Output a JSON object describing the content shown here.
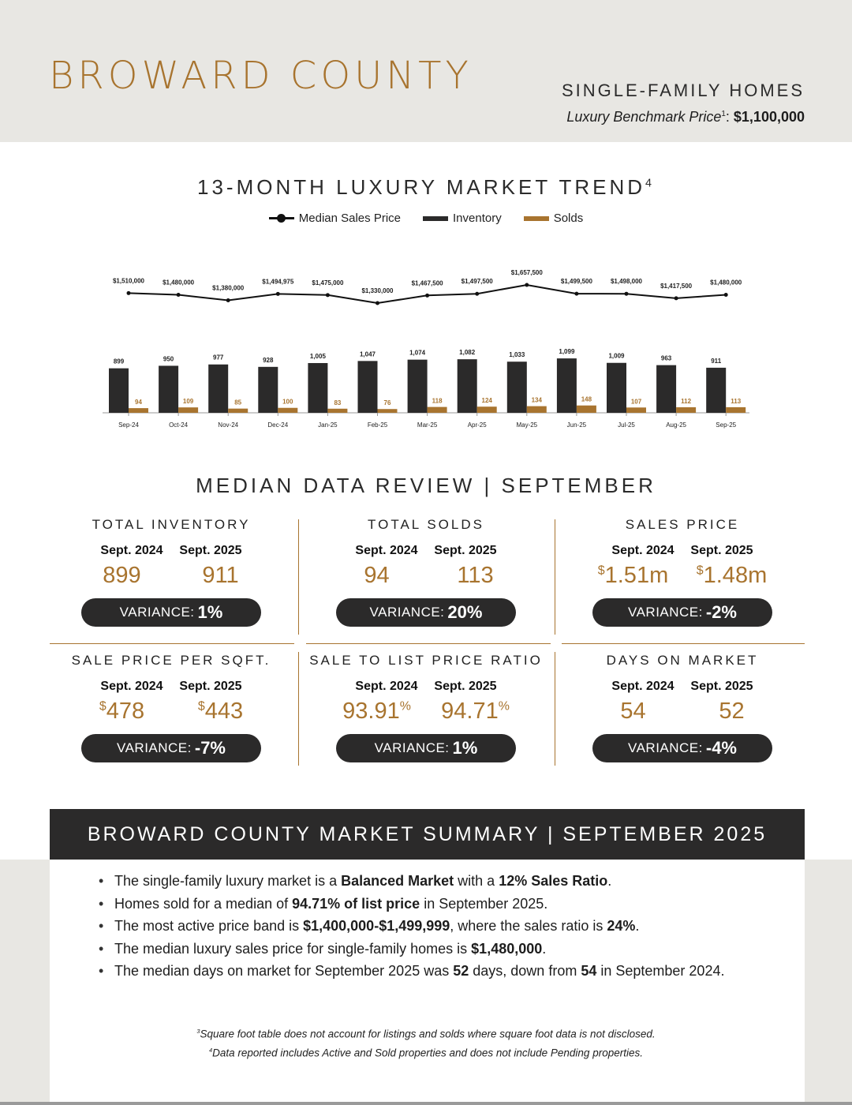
{
  "header": {
    "county": "BROWARD COUNTY",
    "property_type": "SINGLE-FAMILY HOMES",
    "benchmark_label": "Luxury Benchmark Price",
    "benchmark_sup": "1",
    "benchmark_value": "$1,100,000"
  },
  "trend": {
    "title": "13-MONTH LUXURY MARKET TREND",
    "title_sup": "4",
    "legend": {
      "median": "Median Sales Price",
      "inventory": "Inventory",
      "solds": "Solds"
    }
  },
  "colors": {
    "gold": "#a8742f",
    "dark": "#2b2a2a",
    "band": "#e8e7e3"
  },
  "chart_data": {
    "type": "bar",
    "categories": [
      "Sep-24",
      "Oct-24",
      "Nov-24",
      "Dec-24",
      "Jan-25",
      "Feb-25",
      "Mar-25",
      "Apr-25",
      "May-25",
      "Jun-25",
      "Jul-25",
      "Aug-25",
      "Sep-25"
    ],
    "series": [
      {
        "name": "Inventory",
        "values": [
          899,
          950,
          977,
          928,
          1005,
          1047,
          1074,
          1082,
          1033,
          1099,
          1009,
          963,
          911
        ]
      },
      {
        "name": "Solds",
        "values": [
          94,
          109,
          85,
          100,
          83,
          76,
          118,
          124,
          134,
          148,
          107,
          112,
          113
        ]
      },
      {
        "name": "Median Sales Price",
        "chart_type": "line",
        "values": [
          1510000,
          1480000,
          1380000,
          1494975,
          1475000,
          1330000,
          1467500,
          1497500,
          1657500,
          1499500,
          1498000,
          1417500,
          1480000
        ],
        "labels": [
          "$1,510,000",
          "$1,480,000",
          "$1,380,000",
          "$1,494,975",
          "$1,475,000",
          "$1,330,000",
          "$1,467,500",
          "$1,497,500",
          "$1,657,500",
          "$1,499,500",
          "$1,498,000",
          "$1,417,500",
          "$1,480,000"
        ]
      }
    ],
    "grid": false,
    "legend_position": "top-center"
  },
  "review": {
    "title": "MEDIAN DATA REVIEW | SEPTEMBER",
    "variance_label": "VARIANCE:",
    "metrics": [
      {
        "title": "TOTAL INVENTORY",
        "p1": "Sept. 2024",
        "p2": "Sept. 2025",
        "v1": "899",
        "v2": "911",
        "variance": "1%"
      },
      {
        "title": "TOTAL SOLDS",
        "p1": "Sept. 2024",
        "p2": "Sept. 2025",
        "v1": "94",
        "v2": "113",
        "variance": "20%"
      },
      {
        "title": "SALES PRICE",
        "p1": "Sept. 2024",
        "p2": "Sept. 2025",
        "v1_pre": "$",
        "v1": "1.51m",
        "v2_pre": "$",
        "v2": "1.48m",
        "variance": "-2%"
      },
      {
        "title": "SALE PRICE PER SQFT.",
        "p1": "Sept. 2024",
        "p2": "Sept. 2025",
        "v1_pre": "$",
        "v1": "478",
        "v2_pre": "$",
        "v2": "443",
        "variance": "-7%"
      },
      {
        "title": "SALE TO LIST PRICE RATIO",
        "p1": "Sept. 2024",
        "p2": "Sept. 2025",
        "v1": "93.91",
        "v1_post": "%",
        "v2": "94.71",
        "v2_post": "%",
        "variance": "1%"
      },
      {
        "title": "DAYS ON MARKET",
        "p1": "Sept. 2024",
        "p2": "Sept. 2025",
        "v1": "54",
        "v2": "52",
        "variance": "-4%"
      }
    ]
  },
  "summary": {
    "title": "BROWARD COUNTY MARKET SUMMARY | SEPTEMBER 2025",
    "bullets": [
      [
        {
          "t": "The single-family luxury market is a "
        },
        {
          "t": "Balanced Market",
          "b": true
        },
        {
          "t": " with a "
        },
        {
          "t": "12% Sales Ratio",
          "b": true
        },
        {
          "t": "."
        }
      ],
      [
        {
          "t": "Homes sold for a median of "
        },
        {
          "t": "94.71% of list price",
          "b": true
        },
        {
          "t": " in September 2025."
        }
      ],
      [
        {
          "t": "The most active price band is "
        },
        {
          "t": "$1,400,000-$1,499,999",
          "b": true
        },
        {
          "t": ", where the sales ratio is "
        },
        {
          "t": "24%",
          "b": true
        },
        {
          "t": "."
        }
      ],
      [
        {
          "t": "The median luxury sales price for single-family homes is "
        },
        {
          "t": "$1,480,000",
          "b": true
        },
        {
          "t": "."
        }
      ],
      [
        {
          "t": "The median days on market for September 2025 was "
        },
        {
          "t": "52",
          "b": true
        },
        {
          "t": " days, down from "
        },
        {
          "t": "54",
          "b": true
        },
        {
          "t": " in September 2024."
        }
      ]
    ]
  },
  "footnotes": {
    "note3_sup": "3",
    "note3": "Square foot table does not account for listings and solds where square foot data is not disclosed.",
    "note4_sup": "4",
    "note4": "Data reported includes Active and Sold properties and does not include Pending properties."
  }
}
